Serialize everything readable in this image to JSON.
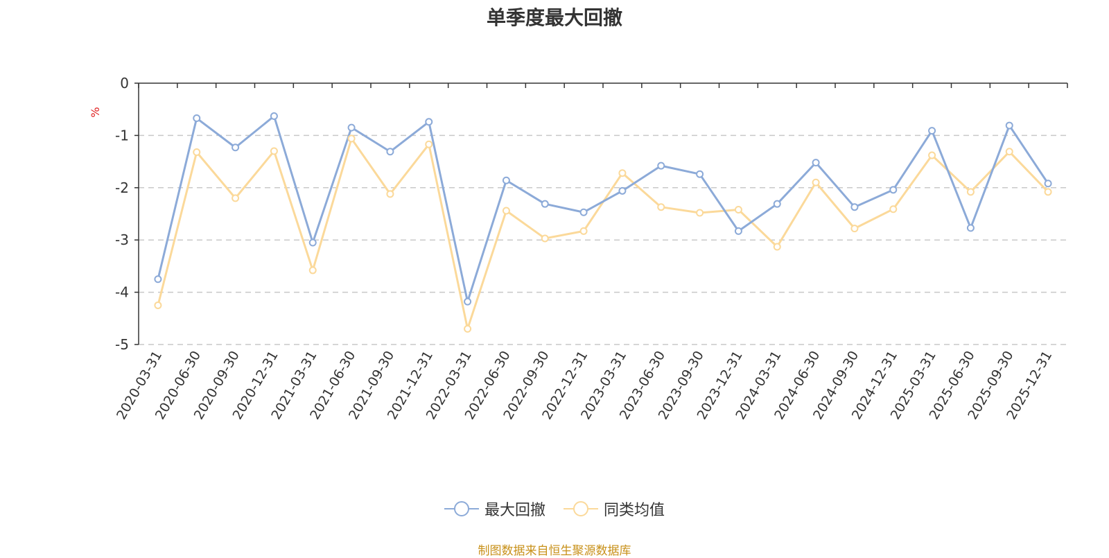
{
  "chart_data": {
    "type": "line",
    "title": "单季度最大回撤",
    "ylabel": "%",
    "ylim": [
      -5,
      0
    ],
    "yticks": [
      0,
      -1,
      -2,
      -3,
      -4,
      -5
    ],
    "grid": true,
    "legend_position": "bottom",
    "categories": [
      "2020-03-31",
      "2020-06-30",
      "2020-09-30",
      "2020-12-31",
      "2021-03-31",
      "2021-06-30",
      "2021-09-30",
      "2021-12-31",
      "2022-03-31",
      "2022-06-30",
      "2022-09-30",
      "2022-12-31",
      "2023-03-31",
      "2023-06-30",
      "2023-09-30",
      "2023-12-31",
      "2024-03-31",
      "2024-06-30",
      "2024-09-30",
      "2024-12-31",
      "2025-03-31",
      "2025-06-30",
      "2025-09-30",
      "2025-12-31"
    ],
    "series": [
      {
        "name": "最大回撤",
        "color": "#8caad8",
        "values": [
          -3.75,
          -0.67,
          -1.23,
          -0.63,
          -3.05,
          -0.85,
          -1.31,
          -0.74,
          -4.18,
          -1.86,
          -2.31,
          -2.47,
          -2.06,
          -1.58,
          -1.74,
          -2.83,
          -2.31,
          -1.52,
          -2.37,
          -2.04,
          -0.91,
          -2.77,
          -0.81,
          -1.92
        ]
      },
      {
        "name": "同类均值",
        "color": "#fbd99a",
        "values": [
          -4.25,
          -1.32,
          -2.2,
          -1.3,
          -3.58,
          -1.06,
          -2.12,
          -1.17,
          -4.7,
          -2.44,
          -2.97,
          -2.83,
          -1.72,
          -2.37,
          -2.48,
          -2.42,
          -3.13,
          -1.9,
          -2.78,
          -2.41,
          -1.38,
          -2.08,
          -1.31,
          -2.08
        ]
      }
    ]
  },
  "source": "制图数据来自恒生聚源数据库"
}
